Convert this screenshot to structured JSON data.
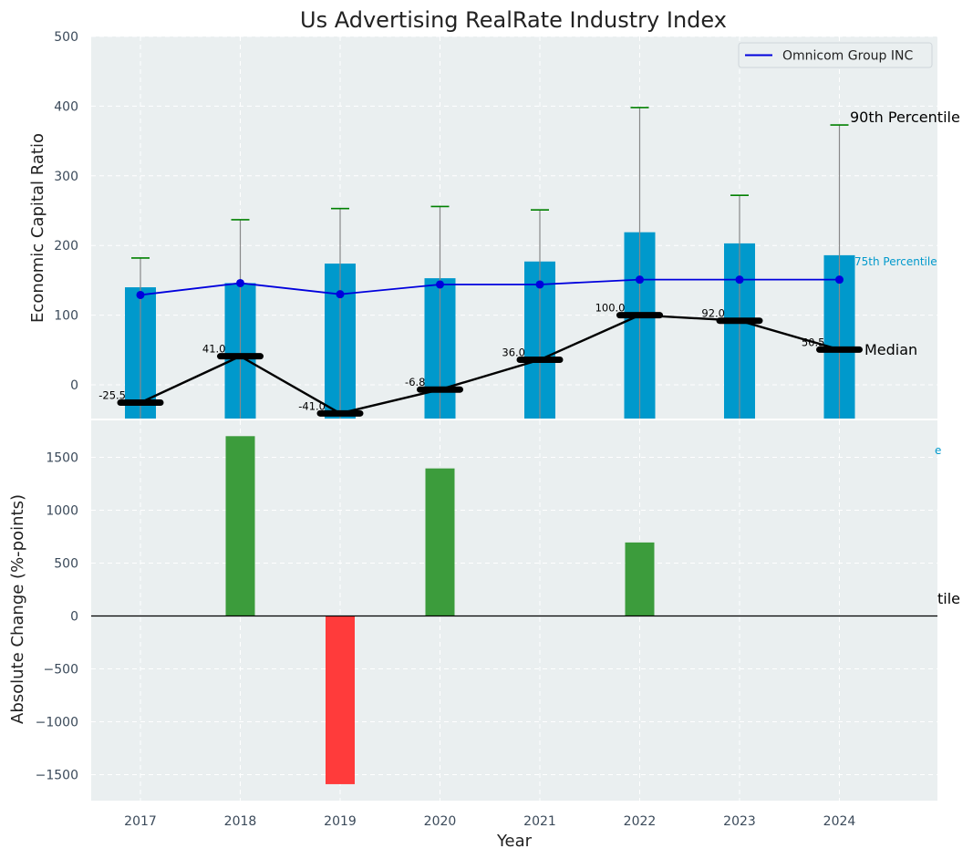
{
  "chart_data": {
    "title": "Us Advertising RealRate Industry Index",
    "xlabel": "Year",
    "colors": {
      "band_bar": "#0099cc",
      "whisker": "#888888",
      "cap": "#008000",
      "company_line": "#0000dd",
      "median_line": "#000000",
      "positive": "#3c9c3c",
      "negative": "#ff3b3b",
      "plot_bg": "#eaeff0",
      "grid": "#ffffff"
    },
    "x": [
      "2017",
      "2018",
      "2019",
      "2020",
      "2021",
      "2022",
      "2023",
      "2024"
    ],
    "top_panel": {
      "type": "bar",
      "ylabel": "Economic Capital Ratio",
      "ylim": [
        -50,
        500
      ],
      "yticks": [
        "0",
        "100",
        "200",
        "300",
        "400",
        "500"
      ],
      "grid": true,
      "legend_position": "top-right",
      "series": [
        {
          "name": "75th Percentile",
          "type": "bar",
          "values": [
            140,
            146,
            174,
            153,
            177,
            219,
            203,
            186
          ]
        },
        {
          "name": "90th Percentile",
          "type": "error-cap",
          "values": [
            182,
            237,
            253,
            256,
            251,
            398,
            272,
            373
          ]
        },
        {
          "name": "Omnicom Group INC",
          "type": "line",
          "values": [
            129,
            146,
            130,
            144,
            144,
            151,
            151,
            151
          ]
        },
        {
          "name": "Median",
          "type": "line",
          "values": [
            -25.5,
            41.0,
            -41.0,
            -6.8,
            36.0,
            100.0,
            92.0,
            50.5
          ]
        }
      ],
      "median_labels": [
        "-25.5",
        "41.0",
        "-41.0",
        "-6.8",
        "36.0",
        "100.0",
        "92.0",
        "50.5"
      ],
      "annotations": {
        "p90": "90th Percentile",
        "p75": "75th Percentile",
        "median": "Median"
      },
      "legend": [
        "Omnicom Group INC"
      ]
    },
    "bottom_panel": {
      "type": "bar",
      "ylabel": "Absolute Change (%-points)",
      "ylim": [
        -1750,
        1750
      ],
      "yticks": [
        "−1500",
        "−1000",
        "−500",
        "0",
        "500",
        "1000",
        "1500"
      ],
      "grid": true,
      "values": [
        null,
        1700,
        -1590,
        1395,
        null,
        695,
        null,
        null
      ],
      "overflow_fragments": {
        "e": "e",
        "tile": "tile"
      }
    }
  }
}
